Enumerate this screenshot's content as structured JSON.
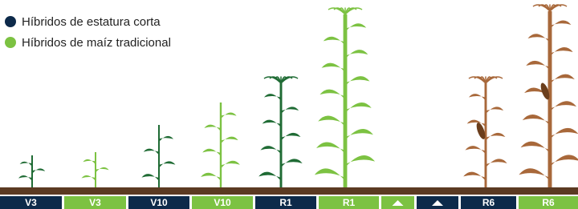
{
  "legend": [
    "Híbridos de estatura corta",
    "Híbridos de maíz tradicional"
  ],
  "stages": [
    "V3",
    "V3",
    "V10",
    "V10",
    "R1",
    "R1",
    "R6",
    "R6"
  ]
}
